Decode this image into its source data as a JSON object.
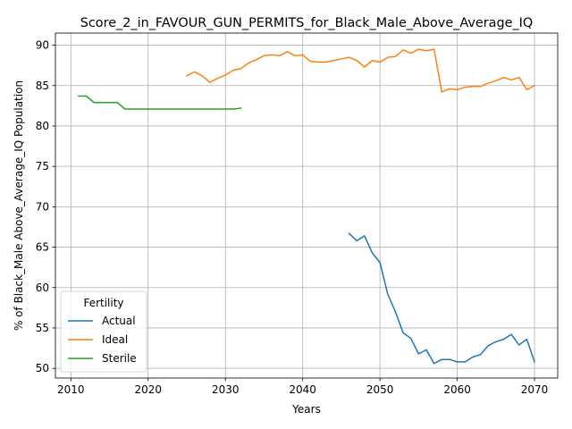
{
  "chart_data": {
    "type": "line",
    "title": "Score_2_in_FAVOUR_GUN_PERMITS_for_Black_Male_Above_Average_IQ",
    "xlabel": "Years",
    "ylabel": "% of Black_Male Above_Average_IQ Population",
    "xlim": [
      2008,
      2073
    ],
    "ylim": [
      48.8,
      91.5
    ],
    "x_ticks": [
      2010,
      2020,
      2030,
      2040,
      2050,
      2060,
      2070
    ],
    "y_ticks": [
      50,
      55,
      60,
      65,
      70,
      75,
      80,
      85,
      90
    ],
    "grid": true,
    "legend": {
      "title": "Fertility",
      "placement": "lower-left",
      "entries": [
        "Actual",
        "Ideal",
        "Sterile"
      ]
    },
    "series": [
      {
        "name": "Actual",
        "color": "#1f77b4",
        "x": [
          2046,
          2047,
          2048,
          2049,
          2050,
          2051,
          2052,
          2053,
          2054,
          2055,
          2056,
          2057,
          2058,
          2059,
          2060,
          2061,
          2062,
          2063,
          2064,
          2065,
          2066,
          2067,
          2068,
          2069,
          2070
        ],
        "y": [
          66.7,
          65.8,
          66.4,
          64.3,
          63.1,
          59.2,
          57.0,
          54.4,
          53.7,
          51.8,
          52.3,
          50.6,
          51.1,
          51.1,
          50.8,
          50.8,
          51.4,
          51.7,
          52.8,
          53.3,
          53.6,
          54.2,
          52.9,
          53.6,
          50.8
        ]
      },
      {
        "name": "Ideal",
        "color": "#ff7f0e",
        "x": [
          2025,
          2026,
          2027,
          2028,
          2029,
          2030,
          2031,
          2032,
          2033,
          2034,
          2035,
          2036,
          2037,
          2038,
          2039,
          2040,
          2041,
          2042,
          2043,
          2044,
          2045,
          2046,
          2047,
          2048,
          2049,
          2050,
          2051,
          2052,
          2053,
          2054,
          2055,
          2056,
          2057,
          2058,
          2059,
          2060,
          2061,
          2062,
          2063,
          2064,
          2065,
          2066,
          2067,
          2068,
          2069,
          2070
        ],
        "y": [
          86.2,
          86.7,
          86.2,
          85.4,
          85.9,
          86.3,
          86.9,
          87.1,
          87.8,
          88.2,
          88.7,
          88.8,
          88.7,
          89.2,
          88.7,
          88.8,
          88.0,
          87.9,
          87.9,
          88.1,
          88.3,
          88.5,
          88.1,
          87.3,
          88.1,
          87.9,
          88.5,
          88.6,
          89.4,
          89.0,
          89.5,
          89.3,
          89.5,
          84.2,
          84.6,
          84.5,
          84.8,
          84.9,
          84.9,
          85.3,
          85.6,
          86.0,
          85.7,
          86.0,
          84.5,
          85.0
        ]
      },
      {
        "name": "Sterile",
        "color": "#2ca02c",
        "x": [
          2011,
          2012,
          2013,
          2014,
          2015,
          2016,
          2017,
          2018,
          2019,
          2020,
          2021,
          2022,
          2023,
          2024,
          2025,
          2026,
          2027,
          2028,
          2029,
          2030,
          2031,
          2032
        ],
        "y": [
          83.7,
          83.7,
          82.9,
          82.9,
          82.9,
          82.9,
          82.1,
          82.1,
          82.1,
          82.1,
          82.1,
          82.1,
          82.1,
          82.1,
          82.1,
          82.1,
          82.1,
          82.1,
          82.1,
          82.1,
          82.1,
          82.2
        ]
      }
    ]
  }
}
